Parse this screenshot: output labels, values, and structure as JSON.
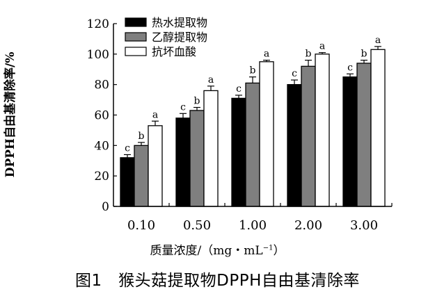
{
  "chart_data": {
    "type": "bar",
    "title": "",
    "xlabel": "质量浓度/（mg・mL",
    "xlabel_sup": "−1",
    "xlabel_close": "）",
    "ylabel": "DPPH自由基清除率/%",
    "ylim": [
      0,
      120
    ],
    "yticks": [
      0,
      20,
      40,
      60,
      80,
      100,
      120
    ],
    "categories": [
      "0.10",
      "0.50",
      "1.00",
      "2.00",
      "3.00"
    ],
    "series": [
      {
        "name": "热水提取物",
        "color": "#000000",
        "values": [
          32,
          58,
          71,
          80,
          85
        ],
        "errors": [
          2,
          3,
          2,
          3,
          2
        ],
        "letters": [
          "c",
          "c",
          "c",
          "c",
          "c"
        ]
      },
      {
        "name": "乙醇提取物",
        "color": "#7f7f7f",
        "values": [
          40,
          63,
          81,
          92,
          94
        ],
        "errors": [
          2,
          2,
          4,
          4,
          2
        ],
        "letters": [
          "b",
          "b",
          "b",
          "b",
          "b"
        ]
      },
      {
        "name": "抗坏血酸",
        "color": "#ffffff",
        "values": [
          53,
          76,
          95,
          100,
          103
        ],
        "errors": [
          3,
          3,
          1,
          1,
          2
        ],
        "letters": [
          "a",
          "a",
          "a",
          "a",
          "a"
        ]
      }
    ],
    "legend_position": "top-left"
  },
  "caption": "图1　猴头菇提取物DPPH自由基清除率"
}
